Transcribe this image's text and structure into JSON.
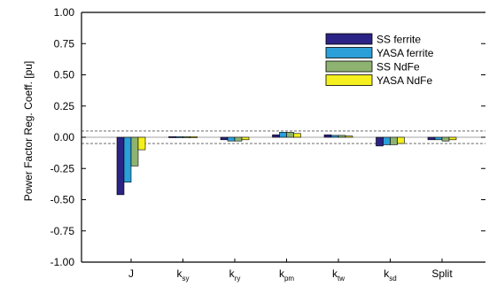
{
  "chart_data": {
    "type": "bar",
    "ylabel": "Power Factor Reg. Coeff. [pu]",
    "xlabel": "",
    "ylim": [
      -1.0,
      1.0
    ],
    "yticks": [
      1.0,
      0.75,
      0.5,
      0.25,
      0.0,
      -0.25,
      -0.5,
      -0.75,
      -1.0
    ],
    "ytick_labels": [
      "1.00",
      "0.75",
      "0.50",
      "0.25",
      "0.00",
      "-0.25",
      "-0.50",
      "-0.75",
      "-1.00"
    ],
    "categories": [
      {
        "main": "J",
        "sub": ""
      },
      {
        "main": "k",
        "sub": "sy"
      },
      {
        "main": "k",
        "sub": "ry"
      },
      {
        "main": "k",
        "sub": "pm"
      },
      {
        "main": "k",
        "sub": "tw"
      },
      {
        "main": "k",
        "sub": "sd"
      },
      {
        "main": "Split",
        "sub": ""
      }
    ],
    "significance_band": [
      -0.05,
      0.05
    ],
    "legend_position": "top-right",
    "series": [
      {
        "name": "SS ferrite",
        "color": "#2b2385",
        "values": [
          -0.46,
          0.005,
          -0.02,
          0.02,
          0.02,
          -0.07,
          -0.02
        ]
      },
      {
        "name": "YASA ferrite",
        "color": "#2a9fd8",
        "values": [
          -0.36,
          0.005,
          -0.03,
          0.04,
          0.015,
          -0.06,
          -0.02
        ]
      },
      {
        "name": "SS NdFe",
        "color": "#8eb371",
        "values": [
          -0.23,
          0.005,
          -0.03,
          0.04,
          0.015,
          -0.06,
          -0.03
        ]
      },
      {
        "name": "YASA NdFe",
        "color": "#f5ef1f",
        "values": [
          -0.1,
          0.005,
          -0.02,
          0.03,
          0.01,
          -0.05,
          -0.02
        ]
      }
    ]
  }
}
